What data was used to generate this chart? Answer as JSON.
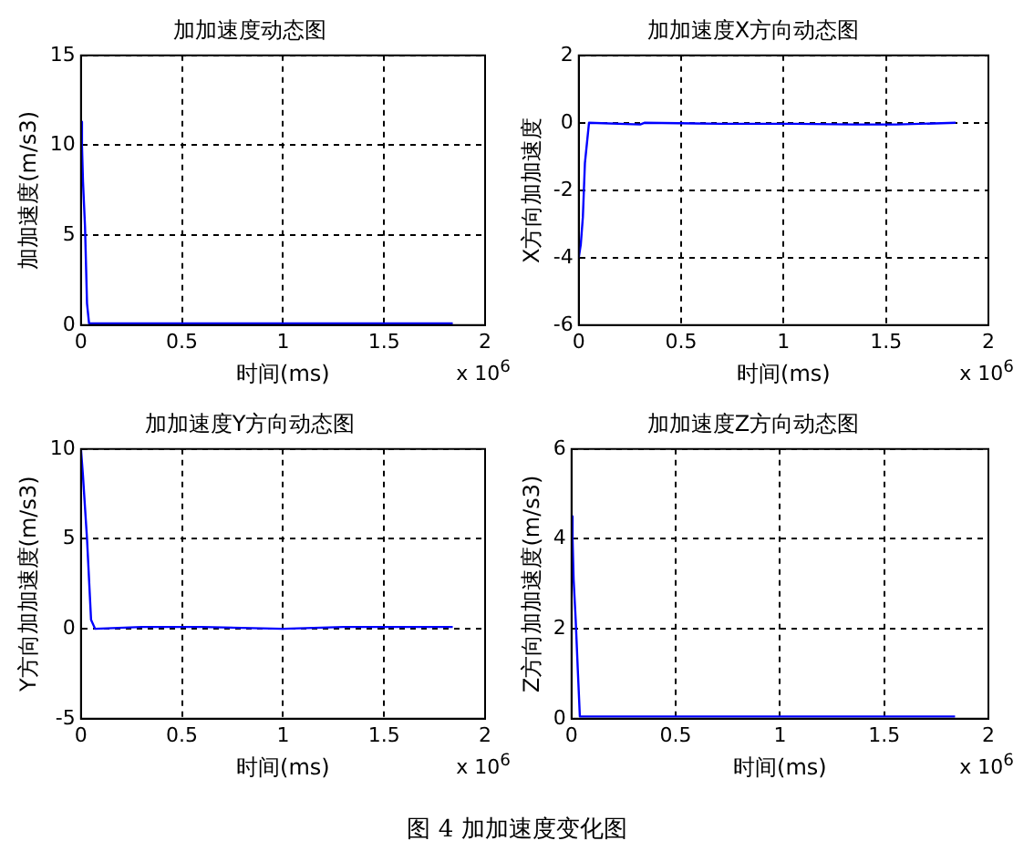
{
  "chart_data": [
    {
      "type": "line",
      "title": "加加速度动态图",
      "xlabel": "时间(ms)",
      "ylabel": "加加速度(m/s3)",
      "annotations": [
        "x 10$^{6}$",
        "图 4  加加速度变化图"
      ],
      "xlim": [
        0,
        2
      ],
      "xticks": [
        0,
        0.5,
        1,
        1.5,
        2
      ],
      "ylim": [
        0,
        15
      ],
      "yticks": [
        0,
        5,
        10,
        15
      ],
      "grid": true,
      "legend": false,
      "marker": "none",
      "series": [
        {
          "color": "#0000ff",
          "x": [
            0,
            0.005,
            0.01,
            0.02,
            0.03,
            0.04,
            1.84
          ],
          "values": [
            11.3,
            10,
            8,
            5.5,
            1.2,
            0.1,
            0.1
          ]
        }
      ]
    },
    {
      "type": "line",
      "title": "加加速度X方向动态图",
      "xlabel": "时间(ms)",
      "ylabel": "X方向加加速度",
      "annotations": [
        "x 10$^{6}$"
      ],
      "xlim": [
        0,
        2
      ],
      "xticks": [
        0,
        0.5,
        1,
        1.5,
        2
      ],
      "ylim": [
        -6,
        2
      ],
      "yticks": [
        -6,
        -4,
        -2,
        0,
        2
      ],
      "grid": true,
      "legend": false,
      "marker": "none",
      "series": [
        {
          "color": "#0000ff",
          "x": [
            0,
            0.01,
            0.02,
            0.03,
            0.05,
            0.3,
            0.32,
            0.7,
            1.05,
            1.35,
            1.55,
            1.84
          ],
          "values": [
            -4,
            -3.6,
            -2.8,
            -1.2,
            0,
            -0.05,
            0,
            -0.03,
            -0.03,
            -0.05,
            -0.05,
            0
          ]
        }
      ]
    },
    {
      "type": "line",
      "title": "加加速度Y方向动态图",
      "xlabel": "时间(ms)",
      "ylabel": "Y方向加加速度(m/s3)",
      "annotations": [
        "x 10$^{6}$"
      ],
      "xlim": [
        0,
        2
      ],
      "xticks": [
        0,
        0.5,
        1,
        1.5,
        2
      ],
      "ylim": [
        -5,
        10
      ],
      "yticks": [
        -5,
        0,
        5,
        10
      ],
      "grid": true,
      "legend": false,
      "marker": "none",
      "series": [
        {
          "color": "#0000ff",
          "x": [
            0,
            0.01,
            0.03,
            0.05,
            0.07,
            0.3,
            0.6,
            1.0,
            1.3,
            1.6,
            1.84
          ],
          "values": [
            10,
            8.5,
            5,
            0.5,
            0,
            0.1,
            0.1,
            0,
            0.1,
            0.1,
            0.1
          ]
        }
      ]
    },
    {
      "type": "line",
      "title": "加加速度Z方向动态图",
      "xlabel": "时间(ms)",
      "ylabel": "Z方向加加速度(m/s3)",
      "annotations": [
        "x 10$^{6}$"
      ],
      "xlim": [
        0,
        2
      ],
      "xticks": [
        0,
        0.5,
        1,
        1.5,
        2
      ],
      "ylim": [
        0,
        6
      ],
      "yticks": [
        0,
        2,
        4,
        6
      ],
      "grid": true,
      "legend": false,
      "marker": "none",
      "series": [
        {
          "color": "#0000ff",
          "x": [
            0,
            0.005,
            0.01,
            0.02,
            0.03,
            0.04,
            1.84
          ],
          "values": [
            4.5,
            4,
            3.1,
            2.2,
            1.1,
            0.05,
            0.05
          ]
        }
      ]
    }
  ]
}
